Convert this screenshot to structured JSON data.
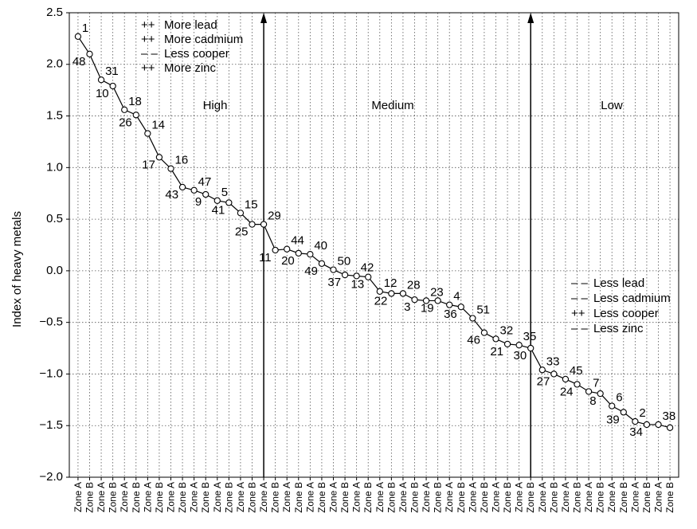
{
  "chart_data": {
    "type": "line",
    "title": "",
    "xlabel": "",
    "ylabel": "Index of heavy metals",
    "ylim": [
      -2.0,
      2.5
    ],
    "yticks": [
      "2.5",
      "2.0",
      "1.5",
      "1.0",
      "0.5",
      "0.0",
      "-0.5",
      "-1.0",
      "-1.5",
      "-2.0"
    ],
    "grid": true,
    "categories": [
      "Zone A",
      "Zone B",
      "Zone A",
      "Zone B",
      "Zone A",
      "Zone B",
      "Zone A",
      "Zone B",
      "Zone A",
      "Zone B",
      "Zone A",
      "Zone B",
      "Zone A",
      "Zone B",
      "Zone A",
      "Zone B",
      "Zone A",
      "Zone B",
      "Zone A",
      "Zone B",
      "Zone A",
      "Zone B",
      "Zone A",
      "Zone B",
      "Zone A",
      "Zone B",
      "Zone A",
      "Zone B",
      "Zone A",
      "Zone B",
      "Zone A",
      "Zone B",
      "Zone A",
      "Zone B",
      "Zone A",
      "Zone B",
      "Zone A",
      "Zone B",
      "Zone A",
      "Zone B",
      "Zone A",
      "Zone B",
      "Zone A",
      "Zone B",
      "Zone A",
      "Zone B",
      "Zone A",
      "Zone B",
      "Zone A",
      "Zone B",
      "Zone A",
      "Zone B"
    ],
    "values": [
      2.27,
      2.1,
      1.85,
      1.79,
      1.56,
      1.51,
      1.33,
      1.1,
      0.99,
      0.81,
      0.78,
      0.74,
      0.68,
      0.66,
      0.56,
      0.45,
      0.45,
      0.2,
      0.21,
      0.17,
      0.16,
      0.07,
      0.01,
      -0.04,
      -0.05,
      -0.06,
      -0.2,
      -0.22,
      -0.22,
      -0.28,
      -0.29,
      -0.29,
      -0.33,
      -0.35,
      -0.46,
      -0.6,
      -0.66,
      -0.71,
      -0.72,
      -0.75,
      -0.96,
      -1.0,
      -1.05,
      -1.1,
      -1.17,
      -1.19,
      -1.31,
      -1.37,
      -1.46,
      -1.49,
      -1.49,
      -1.52
    ],
    "point_labels": [
      "1",
      "48",
      "31",
      "10",
      "18",
      "26",
      "14",
      "17",
      "16",
      "43",
      "47",
      "9",
      "5",
      "41",
      "15",
      "25",
      "29",
      "11",
      "44",
      "20",
      "40",
      "49",
      "50",
      "37",
      "42",
      "13",
      "12",
      "22",
      "28",
      "3",
      "23",
      "19",
      "4",
      "36",
      "51",
      "46",
      "32",
      "21",
      "35",
      "30",
      "33",
      "27",
      "45",
      "24",
      "7",
      "8",
      "6",
      "39",
      "2",
      "34",
      "38",
      ""
    ],
    "group_labels": [
      "High",
      "Medium",
      "Low"
    ],
    "legend_top": [
      {
        "sign": "++",
        "text": "More lead"
      },
      {
        "sign": "++",
        "text": "More cadmium"
      },
      {
        "sign": "– –",
        "text": "Less cooper"
      },
      {
        "sign": "++",
        "text": "More zinc"
      }
    ],
    "legend_right": [
      {
        "sign": "– –",
        "text": "Less lead"
      },
      {
        "sign": "– –",
        "text": "Less cadmium"
      },
      {
        "sign": "++",
        "text": "Less cooper"
      },
      {
        "sign": "– –",
        "text": "Less zinc"
      }
    ]
  }
}
